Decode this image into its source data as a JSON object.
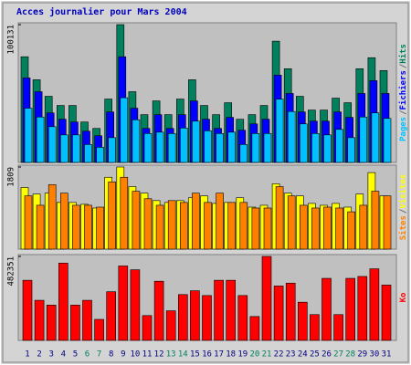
{
  "chart_data": [
    {
      "type": "bar",
      "title": "Acces journalier pour Mars 2004",
      "ylim": [
        0,
        100131
      ],
      "yticks": [
        100131
      ],
      "legend_separator": "/",
      "series": [
        {
          "name": "Hits",
          "color": "#00805c",
          "values": [
            76800,
            60080,
            48060,
            41390,
            41390,
            29370,
            24700,
            46060,
            100131,
            51400,
            34710,
            44730,
            34710,
            46060,
            60080,
            41390,
            34710,
            43390,
            31370,
            34710,
            41390,
            88120,
            68090,
            48060,
            38050,
            38050,
            46730,
            43390,
            68090,
            76100,
            66750
          ]
        },
        {
          "name": "Fichiers",
          "color": "#0000ff",
          "values": [
            61400,
            51400,
            36000,
            31400,
            29400,
            22700,
            19400,
            36700,
            76800,
            39400,
            24700,
            34700,
            24700,
            34700,
            44700,
            31400,
            24700,
            32700,
            23400,
            28000,
            31400,
            63400,
            50100,
            36700,
            30000,
            30000,
            36700,
            32700,
            50100,
            59400,
            50100
          ]
        },
        {
          "name": "Pages",
          "color": "#00c0ff",
          "values": [
            39400,
            33000,
            26000,
            20000,
            20000,
            13000,
            11000,
            18000,
            47000,
            31000,
            21000,
            22000,
            21000,
            25000,
            30000,
            23000,
            21000,
            22000,
            13000,
            21000,
            21000,
            46000,
            37000,
            28000,
            21000,
            20000,
            24000,
            18000,
            33000,
            36000,
            32000
          ]
        }
      ]
    },
    {
      "type": "bar",
      "ylim": [
        0,
        1809
      ],
      "yticks": [
        1809
      ],
      "legend_separator": "/",
      "series": [
        {
          "name": "Visites",
          "color": "#ffff00",
          "values": [
            1357,
            1213,
            1233,
            1028,
            1028,
            987,
            905,
            1583,
            1809,
            1377,
            1233,
            1069,
            1028,
            1069,
            1131,
            1172,
            1007,
            1028,
            1131,
            925,
            966,
            1439,
            1233,
            1172,
            1007,
            966,
            1007,
            925,
            1213,
            1686,
            1172
          ]
        },
        {
          "name": "Sites",
          "color": "#ff8000",
          "values": [
            1172,
            966,
            1419,
            1233,
            966,
            966,
            925,
            1480,
            1583,
            1275,
            1110,
            966,
            1069,
            1028,
            1233,
            1028,
            1233,
            1028,
            1028,
            905,
            905,
            1377,
            1172,
            966,
            905,
            925,
            905,
            822,
            966,
            1275,
            1172
          ]
        }
      ]
    },
    {
      "type": "bar",
      "ylim": [
        0,
        482351
      ],
      "yticks": [
        482351
      ],
      "categories": [
        "1",
        "2",
        "3",
        "4",
        "5",
        "6",
        "7",
        "8",
        "9",
        "10",
        "11",
        "12",
        "13",
        "14",
        "15",
        "16",
        "17",
        "18",
        "19",
        "20",
        "21",
        "22",
        "23",
        "24",
        "25",
        "26",
        "27",
        "28",
        "29",
        "30",
        "31"
      ],
      "category_colors": [
        "#000080",
        "#000080",
        "#000080",
        "#000080",
        "#000080",
        "#00805c",
        "#00805c",
        "#000080",
        "#000080",
        "#000080",
        "#000080",
        "#000080",
        "#00805c",
        "#00805c",
        "#000080",
        "#000080",
        "#000080",
        "#000080",
        "#000080",
        "#00805c",
        "#00805c",
        "#000080",
        "#000080",
        "#000080",
        "#000080",
        "#000080",
        "#00805c",
        "#00805c",
        "#000080",
        "#000080",
        "#000080"
      ],
      "series": [
        {
          "name": "Ko",
          "color": "#ff0000",
          "values": [
            345300,
            230200,
            202800,
            444000,
            202800,
            230200,
            120600,
            279500,
            427500,
            405600,
            142500,
            339800,
            169900,
            263100,
            285000,
            257600,
            345300,
            345300,
            257600,
            137000,
            482351,
            312400,
            328900,
            219300,
            148000,
            356300,
            148000,
            356300,
            367200,
            411100,
            317900
          ]
        }
      ]
    }
  ]
}
